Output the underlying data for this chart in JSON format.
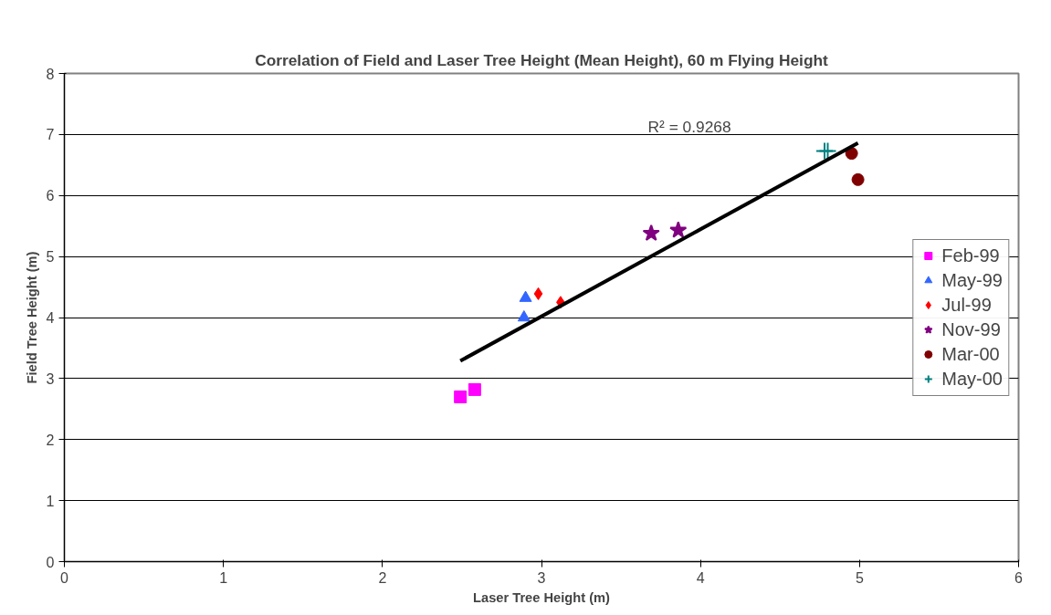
{
  "chart_data": {
    "type": "scatter",
    "title": "Correlation of Field and Laser Tree Height (Mean Height), 60 m Flying Height",
    "xlabel": "Laser Tree Height (m)",
    "ylabel": "Field Tree Height (m)",
    "xlim": [
      0,
      6
    ],
    "ylim": [
      0,
      8
    ],
    "xticks": [
      0,
      1,
      2,
      3,
      4,
      5,
      6
    ],
    "yticks": [
      0,
      1,
      2,
      3,
      4,
      5,
      6,
      7,
      8
    ],
    "grid": "y",
    "legend": "right",
    "annotations": [
      "R² = 0.9268"
    ],
    "series": [
      {
        "name": "Feb-99",
        "color": "#ff00ff",
        "marker": "square",
        "x": [
          2.49,
          2.58
        ],
        "values": [
          2.7,
          2.82
        ]
      },
      {
        "name": "May-99",
        "color": "#3366ff",
        "marker": "triangle",
        "x": [
          2.9,
          2.89
        ],
        "values": [
          4.32,
          4.0
        ]
      },
      {
        "name": "Jul-99",
        "color": "#ff0000",
        "marker": "diamond",
        "x": [
          2.98,
          3.12
        ],
        "values": [
          4.39,
          4.25
        ]
      },
      {
        "name": "Nov-99",
        "color": "#800080",
        "marker": "star",
        "x": [
          3.69,
          3.86
        ],
        "values": [
          5.38,
          5.43
        ]
      },
      {
        "name": "Mar-00",
        "color": "#800000",
        "marker": "circle",
        "x": [
          4.95,
          4.99
        ],
        "values": [
          6.69,
          6.26
        ]
      },
      {
        "name": "May-00",
        "color": "#008080",
        "marker": "cross",
        "x": [
          4.78,
          4.8
        ],
        "values": [
          6.73,
          6.73
        ]
      },
      {
        "type": "line",
        "color": "#000000",
        "marker": "none",
        "x": [
          2.49,
          4.99
        ],
        "values": [
          3.29,
          6.86
        ]
      }
    ]
  }
}
